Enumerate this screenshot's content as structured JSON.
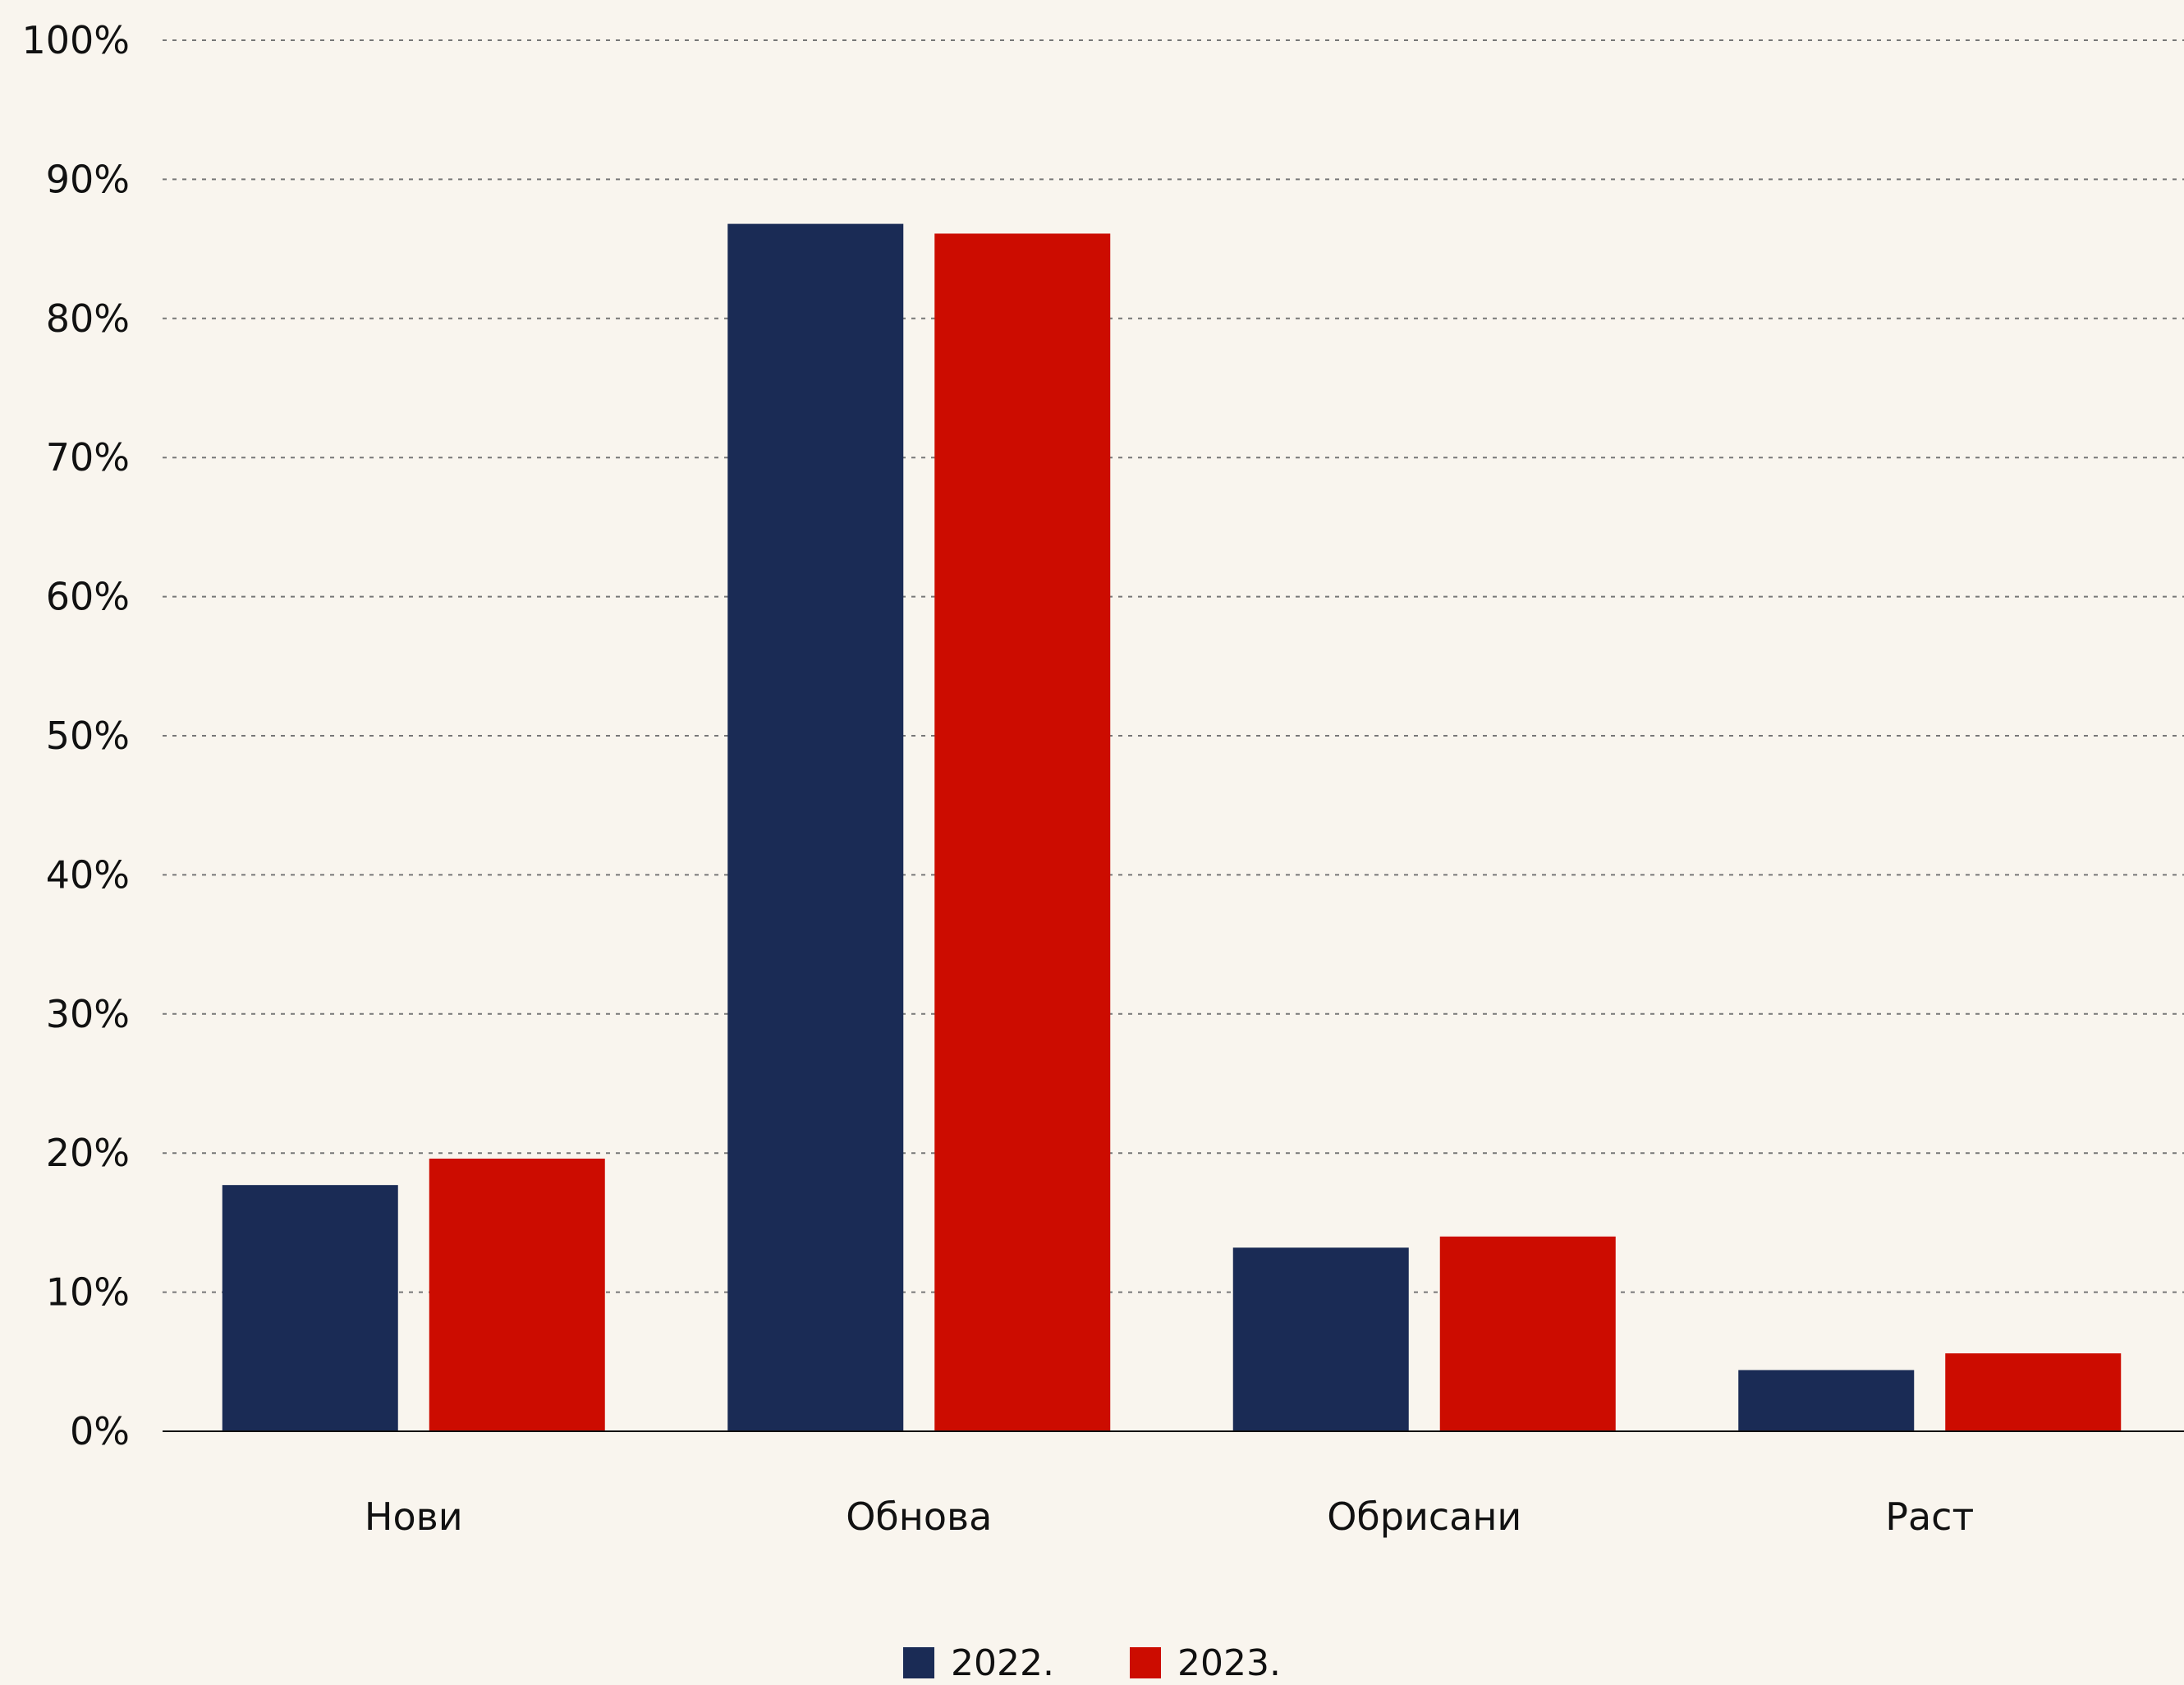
{
  "chart_data": {
    "type": "bar",
    "title": "",
    "xlabel": "",
    "ylabel": "",
    "categories": [
      "Нови",
      "Обнова",
      "Обрисани",
      "Раст"
    ],
    "series": [
      {
        "name": "2022.",
        "color": "#1a2b55",
        "values": [
          17.7,
          86.8,
          13.2,
          4.4
        ]
      },
      {
        "name": "2023.",
        "color": "#cc0c00",
        "values": [
          19.6,
          86.1,
          14.0,
          5.6
        ]
      }
    ],
    "ylim": [
      0,
      100
    ],
    "yticks": [
      "0%",
      "10%",
      "20%",
      "30%",
      "40%",
      "50%",
      "60%",
      "70%",
      "80%",
      "90%",
      "100%"
    ],
    "grid": true,
    "legend_position": "bottom-center",
    "background": "#f9f5ee"
  }
}
